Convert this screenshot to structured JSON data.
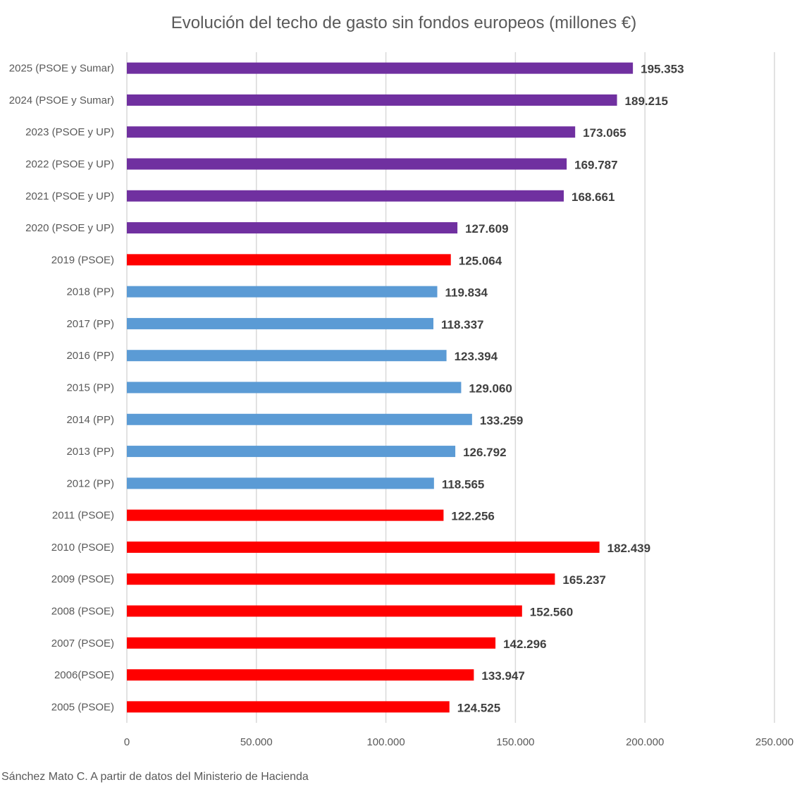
{
  "chart_data": {
    "type": "bar",
    "orientation": "horizontal",
    "title": "Evolución del techo de gasto sin fondos europeos (millones €)",
    "xlabel": "",
    "ylabel": "",
    "xlim": [
      0,
      250000
    ],
    "x_ticks": [
      0,
      50000,
      100000,
      150000,
      200000,
      250000
    ],
    "x_tick_labels": [
      "0",
      "50.000",
      "100.000",
      "150.000",
      "200.000",
      "250.000"
    ],
    "grid": "vertical",
    "legend": "none",
    "colors": {
      "PSOE y Sumar": "#7030a0",
      "PSOE y UP": "#7030a0",
      "PSOE": "#ff0000",
      "PP": "#5b9bd5"
    },
    "categories": [
      "2025 (PSOE y Sumar)",
      "2024 (PSOE y Sumar)",
      "2023 (PSOE y UP)",
      "2022 (PSOE y UP)",
      "2021 (PSOE y UP)",
      "2020 (PSOE y UP)",
      "2019 (PSOE)",
      "2018 (PP)",
      "2017 (PP)",
      "2016 (PP)",
      "2015 (PP)",
      "2014 (PP)",
      "2013 (PP)",
      "2012 (PP)",
      "2011 (PSOE)",
      "2010 (PSOE)",
      "2009 (PSOE)",
      "2008 (PSOE)",
      "2007 (PSOE)",
      "2006(PSOE)",
      "2005 (PSOE)"
    ],
    "values": [
      195353,
      189215,
      173065,
      169787,
      168661,
      127609,
      125064,
      119834,
      118337,
      123394,
      129060,
      133259,
      126792,
      118565,
      122256,
      182439,
      165237,
      152560,
      142296,
      133947,
      124525
    ],
    "data_labels": [
      "195.353",
      "189.215",
      "173.065",
      "169.787",
      "168.661",
      "127.609",
      "125.064",
      "119.834",
      "118.337",
      "123.394",
      "129.060",
      "133.259",
      "126.792",
      "118.565",
      "122.256",
      "182.439",
      "165.237",
      "152.560",
      "142.296",
      "133.947",
      "124.525"
    ],
    "government": [
      "PSOE y Sumar",
      "PSOE y Sumar",
      "PSOE y UP",
      "PSOE y UP",
      "PSOE y UP",
      "PSOE y UP",
      "PSOE",
      "PP",
      "PP",
      "PP",
      "PP",
      "PP",
      "PP",
      "PP",
      "PSOE",
      "PSOE",
      "PSOE",
      "PSOE",
      "PSOE",
      "PSOE",
      "PSOE"
    ]
  },
  "source": "Sánchez Mato C.  A partir de datos del Ministerio de Hacienda"
}
